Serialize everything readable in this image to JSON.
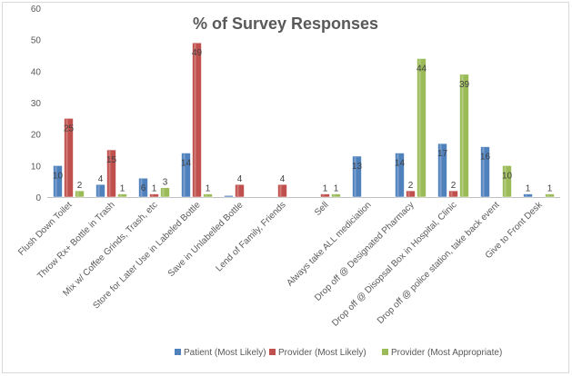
{
  "chart_data": {
    "type": "bar",
    "title": "% of Survey Responses",
    "xlabel": "",
    "ylabel": "",
    "ylim": [
      0,
      60
    ],
    "yticks": [
      0,
      10,
      20,
      30,
      40,
      50,
      60
    ],
    "grid": false,
    "legend_position": "bottom",
    "categories": [
      "Flush Down Toilet",
      "Throw Rx+ Bottle in Trash",
      "Mix w/ Coffee Grinds, Trash, etc",
      "Store for Later Use in Labeled Bottle",
      "Save in Unlabelled Bottle",
      "Lend of Family, Friends",
      "Sell",
      "Always take ALL mediciation",
      "Drop off @ Designated Pharmacy",
      "Drop off @ Disopsal Box in Hospital, Clinic",
      "Drop off @ police station, take back event",
      "Give to Front Desk"
    ],
    "series": [
      {
        "name": "Patient (Most Likely)",
        "color": "#4f81bd",
        "values": [
          10,
          4,
          6,
          14,
          0.5,
          null,
          null,
          13,
          14,
          17,
          16,
          1
        ],
        "labels": [
          "10",
          "4",
          "6",
          "14",
          "",
          "",
          "",
          "13",
          "14",
          "17",
          "16",
          "1"
        ]
      },
      {
        "name": "Provider (Most Likely)",
        "color": "#c0504d",
        "values": [
          25,
          15,
          1,
          49,
          4,
          4,
          1,
          null,
          2,
          2,
          null,
          null
        ],
        "labels": [
          "25",
          "15",
          "1",
          "49",
          "4",
          "4",
          "1",
          "",
          "2",
          "2",
          "",
          ""
        ]
      },
      {
        "name": "Provider (Most Appropriate)",
        "color": "#9bbb59",
        "values": [
          2,
          1,
          3,
          1,
          null,
          null,
          1,
          null,
          44,
          39,
          10,
          1
        ],
        "labels": [
          "2",
          "1",
          "3",
          "1",
          "",
          "",
          "1",
          "",
          "44",
          "39",
          "10",
          "1"
        ]
      }
    ]
  }
}
